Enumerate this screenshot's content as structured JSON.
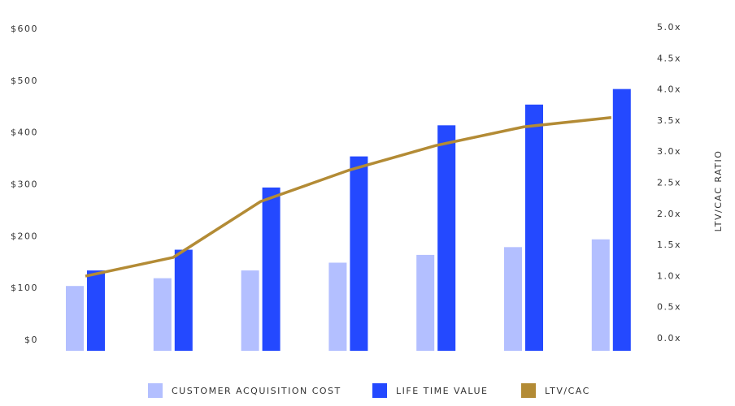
{
  "chart_data": {
    "type": "bar-line",
    "categories": [
      null,
      null,
      null,
      null,
      null,
      null,
      null
    ],
    "series": [
      {
        "name": "CUSTOMER ACQUISITION COST",
        "type": "bar",
        "color": "#b3bfff",
        "values": [
          125,
          140,
          155,
          170,
          185,
          200,
          215
        ]
      },
      {
        "name": "LIFE TIME VALUE",
        "type": "bar",
        "color": "#2449ff",
        "values": [
          155,
          195,
          315,
          375,
          435,
          475,
          505
        ]
      },
      {
        "name": "LTV/CAC",
        "type": "line",
        "axis": "y2",
        "color": "#b38b35",
        "values": [
          1.2,
          1.5,
          2.4,
          2.9,
          3.3,
          3.6,
          3.75
        ]
      }
    ],
    "ylim": [
      0,
      600
    ],
    "yticks": [
      {
        "value": 0,
        "label": "$0"
      },
      {
        "value": 100,
        "label": "$100"
      },
      {
        "value": 200,
        "label": "$200"
      },
      {
        "value": 300,
        "label": "$300"
      },
      {
        "value": 400,
        "label": "$400"
      },
      {
        "value": 500,
        "label": "$500"
      },
      {
        "value": 600,
        "label": "$600"
      }
    ],
    "y2lim": [
      0,
      5
    ],
    "y2ticks": [
      {
        "value": 0,
        "label": "0.0x"
      },
      {
        "value": 0.5,
        "label": "0.5x"
      },
      {
        "value": 1,
        "label": "1.0x"
      },
      {
        "value": 1.5,
        "label": "1.5x"
      },
      {
        "value": 2,
        "label": "2.0x"
      },
      {
        "value": 2.5,
        "label": "2.5x"
      },
      {
        "value": 3,
        "label": "3.0x"
      },
      {
        "value": 3.5,
        "label": "3.5x"
      },
      {
        "value": 4,
        "label": "4.0x"
      },
      {
        "value": 4.5,
        "label": "4.5x"
      },
      {
        "value": 5,
        "label": "5.0x"
      }
    ],
    "y2label": "LTV/CAC RATIO",
    "legend": "bottom"
  }
}
